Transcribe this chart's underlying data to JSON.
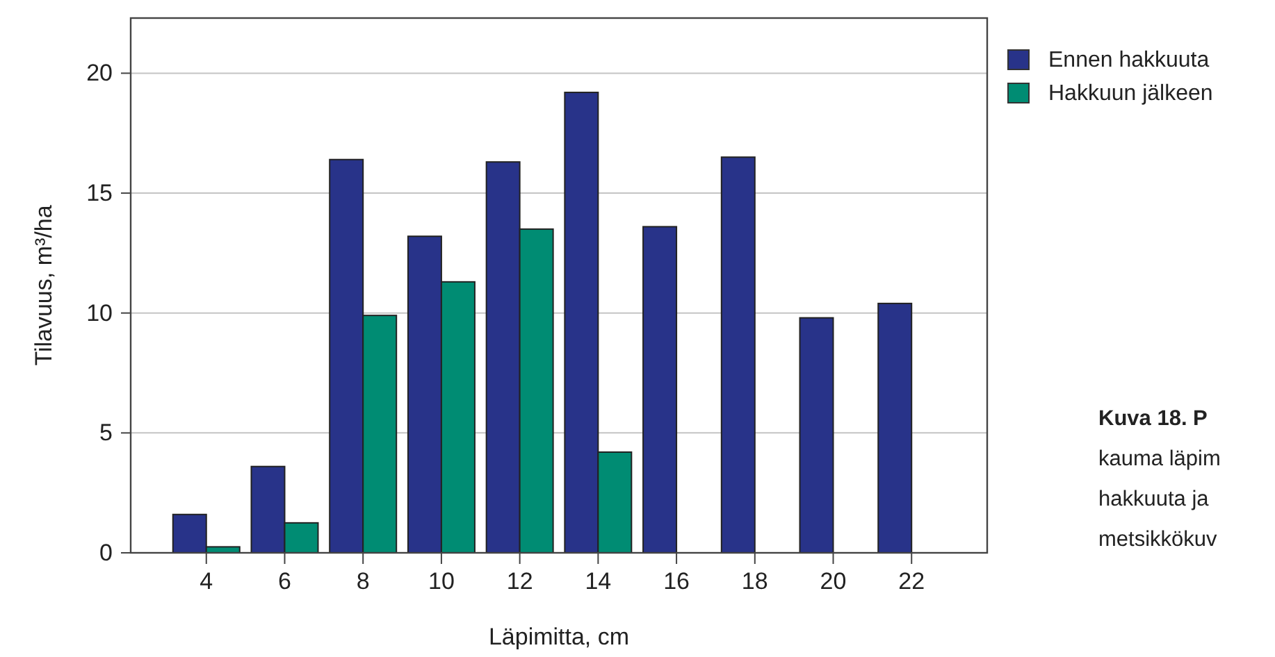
{
  "chart_data": {
    "type": "bar",
    "xlabel": "Läpimitta, cm",
    "ylabel": "Tilavuus, m³/ha",
    "categories": [
      "4",
      "6",
      "8",
      "10",
      "12",
      "14",
      "16",
      "18",
      "20",
      "22"
    ],
    "series": [
      {
        "name": "Ennen hakkuuta",
        "color": "#283389",
        "values": [
          1.6,
          3.6,
          16.4,
          13.2,
          16.3,
          19.2,
          13.6,
          16.5,
          9.8,
          10.4
        ]
      },
      {
        "name": "Hakkuun jälkeen",
        "color": "#008c73",
        "values": [
          0.25,
          1.25,
          9.9,
          11.3,
          13.5,
          4.2,
          null,
          null,
          null,
          null
        ]
      }
    ],
    "ylim": [
      0,
      22.3
    ],
    "yticks": [
      0,
      5,
      10,
      15,
      20
    ],
    "grid": "y",
    "legend": "top right",
    "annotations": [
      "Kuva 18. P",
      "kauma läpim",
      "hakkuuta ja",
      "metsikkökuv"
    ]
  }
}
